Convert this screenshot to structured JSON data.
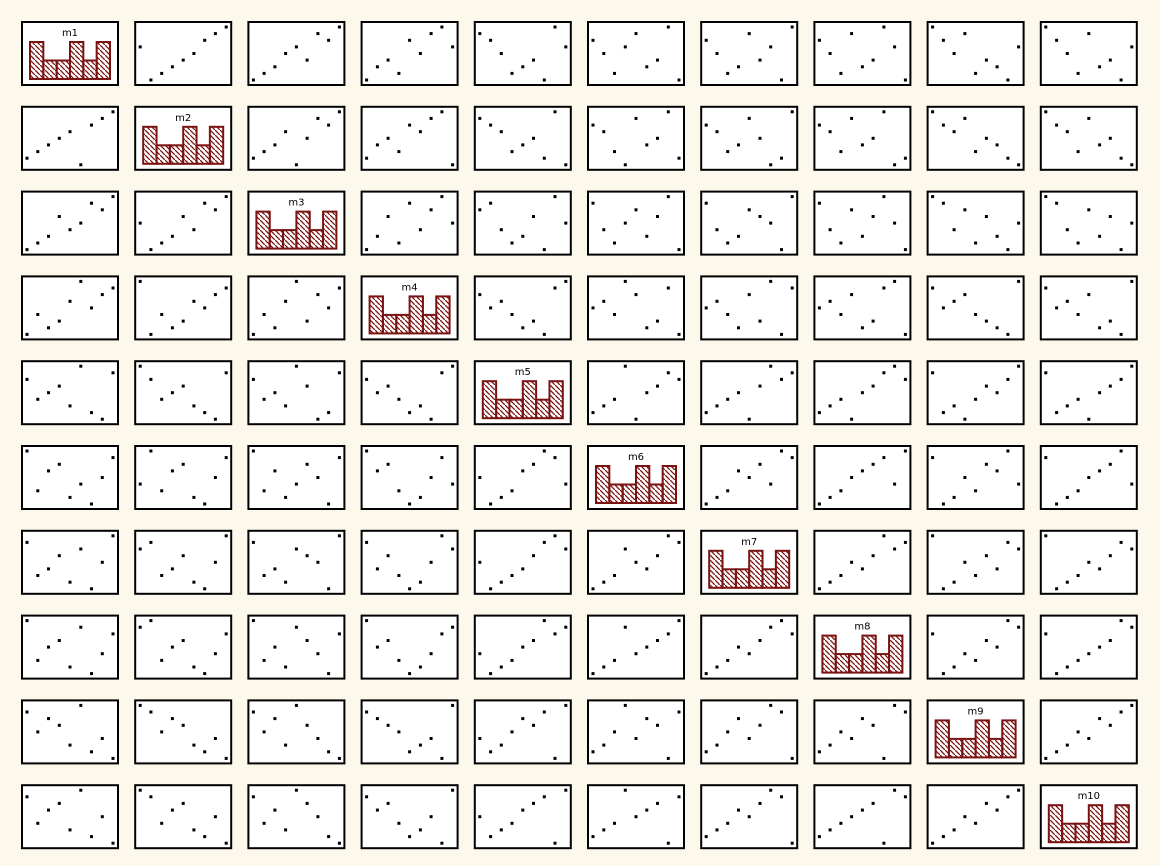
{
  "chart_data": {
    "type": "scatter",
    "variables": [
      "m1",
      "m2",
      "m3",
      "m4",
      "m5",
      "m6",
      "m7",
      "m8",
      "m9",
      "m10"
    ],
    "observations": [
      [
        1,
        2,
        1,
        1,
        7,
        9,
        8,
        9,
        8,
        8
      ],
      [
        3,
        4,
        3,
        2,
        5,
        6,
        4,
        5,
        7,
        6
      ],
      [
        4,
        5,
        6,
        3,
        6,
        7,
        6,
        6,
        6,
        7
      ],
      [
        2,
        3,
        2,
        4,
        4,
        3,
        3,
        3,
        5,
        4
      ],
      [
        5,
        6,
        4,
        6,
        3,
        2,
        2,
        2,
        3,
        3
      ],
      [
        7,
        7,
        8,
        5,
        2,
        1,
        1,
        1,
        2,
        2
      ],
      [
        8,
        8,
        7,
        7,
        1,
        5,
        5,
        4,
        4,
        5
      ],
      [
        9,
        9,
        9,
        8,
        8,
        8,
        9,
        7,
        1,
        1
      ],
      [
        6,
        1,
        5,
        9,
        9,
        4,
        7,
        8,
        9,
        9
      ]
    ],
    "diagonal": {
      "type": "histogram",
      "bins": 6,
      "bar_fill": "#ffffff",
      "bar_stroke": "#7b1212",
      "hatch_color": "#7b1212"
    },
    "point_color": "#000000",
    "panel_border": "#000000",
    "background": "#fdf8ec"
  }
}
